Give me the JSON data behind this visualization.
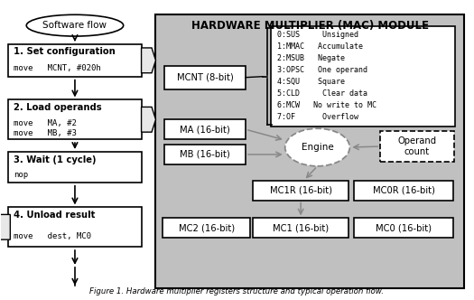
{
  "title": "HARDWARE MULTIPLIER (MAC) MODULE",
  "bg_color": "#c0c0c0",
  "white": "#ffffff",
  "black": "#000000",
  "light_gray": "#e8e8e8",
  "dark_gray": "#888888",
  "sw_flow_label": "Software flow",
  "mcnt_label": "MCNT (8-bit)",
  "ma_label": "MA (16-bit)",
  "mb_label": "MB (16-bit)",
  "mc1r_label": "MC1R (16-bit)",
  "mc0r_label": "MC0R (16-bit)",
  "mc2_label": "MC2 (16-bit)",
  "mc1_label": "MC1 (16-bit)",
  "mc0_label": "MC0 (16-bit)",
  "engine_label": "Engine",
  "operand_label": "Operand\ncount",
  "step1_bold": "1. Set configuration",
  "step1_code": "move   MCNT, #020h",
  "step2_bold": "2. Load operands",
  "step2_code1": "move   MA, #2",
  "step2_code2": "move   MB, #3",
  "step3_bold": "3. Wait (1 cycle)",
  "step3_code": "nop",
  "step4_bold": "4. Unload result",
  "step4_code": "move   dest, MC0",
  "bits_lines": [
    "0:SUS     Unsigned",
    "1:MMAC   Accumulate",
    "2:MSUB   Negate",
    "3:OPSC   One operand",
    "4:SQU    Square",
    "5:CLD     Clear data",
    "6:MCW   No write to MC",
    "7:OF      Overflow"
  ],
  "caption": "Figure 1. Hardware multiplier registers structure and typical operation flow."
}
